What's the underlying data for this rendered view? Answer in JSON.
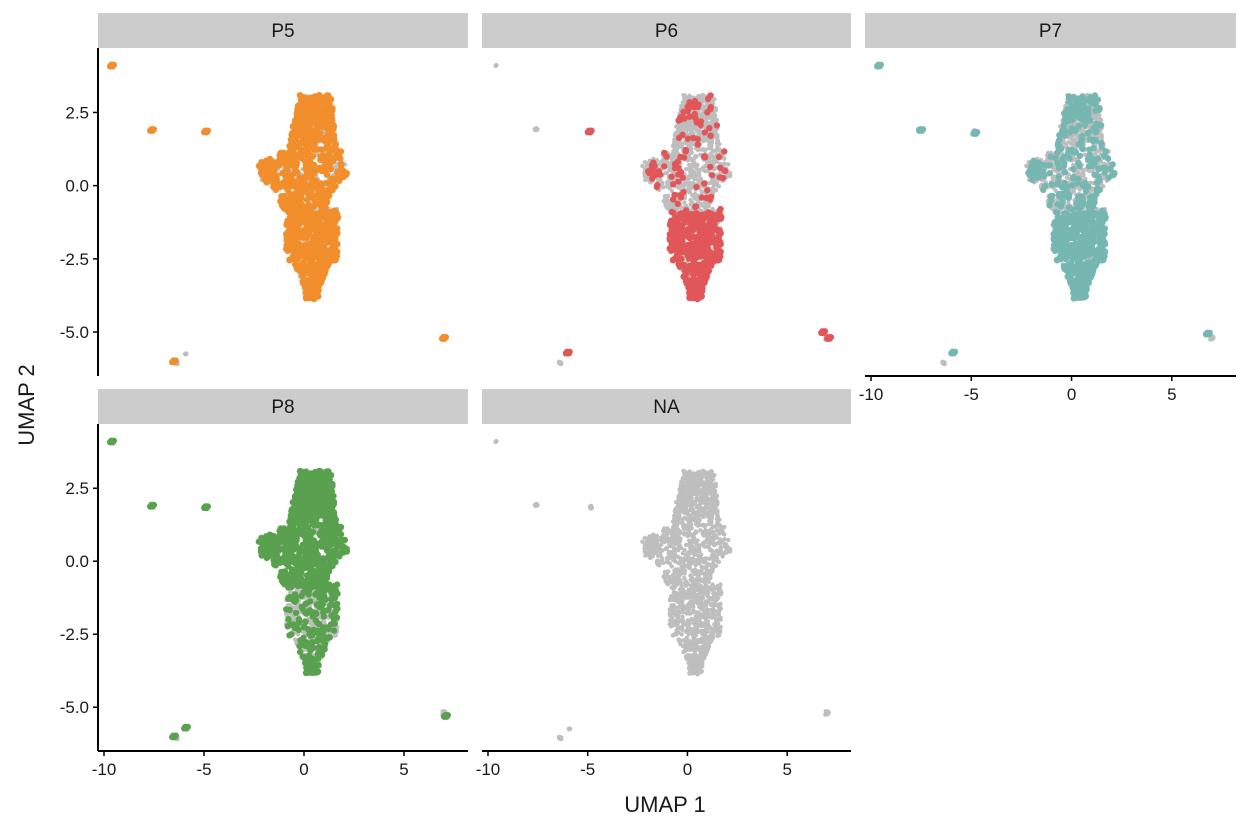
{
  "chart_data": {
    "type": "scatter",
    "xlabel": "UMAP 1",
    "ylabel": "UMAP 2",
    "xlim": [
      -10.3,
      8.2
    ],
    "ylim": [
      -6.5,
      4.7
    ],
    "x_ticks": [
      -10,
      -5,
      0,
      5
    ],
    "x_tick_labels": [
      "-10",
      "-5",
      "0",
      "5"
    ],
    "y_ticks": [
      2.5,
      0.0,
      -2.5,
      -5.0
    ],
    "y_tick_labels": [
      "2.5",
      "0.0",
      "-2.5",
      "-5.0"
    ],
    "grid": false,
    "legend": "none",
    "background_color": "#bebebe",
    "strip_color": "#cccccc",
    "panels": [
      {
        "label": "P5",
        "color": "#f28e2b",
        "highlight": {
          "main_top": 0.65,
          "main_bottom": 0.85,
          "outliers": [
            [
              -9.6,
              4.1
            ],
            [
              -7.6,
              1.9
            ],
            [
              -4.9,
              1.85
            ],
            [
              -6.5,
              -6.0
            ],
            [
              7.0,
              -5.2
            ]
          ]
        }
      },
      {
        "label": "P6",
        "color": "#e15759",
        "highlight": {
          "main_top": 0.1,
          "main_bottom": 0.75,
          "outliers": [
            [
              -4.9,
              1.85
            ],
            [
              -6.0,
              -5.7
            ],
            [
              6.8,
              -5.0
            ],
            [
              7.1,
              -5.2
            ]
          ]
        }
      },
      {
        "label": "P7",
        "color": "#76b7b2",
        "highlight": {
          "main_top": 0.25,
          "main_bottom": 0.8,
          "outliers": [
            [
              -9.6,
              4.1
            ],
            [
              -7.5,
              1.9
            ],
            [
              -4.8,
              1.8
            ],
            [
              -5.9,
              -5.7
            ],
            [
              6.8,
              -5.05
            ]
          ]
        }
      },
      {
        "label": "P8",
        "color": "#59a14f",
        "highlight": {
          "main_top": 0.95,
          "main_bottom": 0.3,
          "outliers": [
            [
              -9.6,
              4.1
            ],
            [
              -7.6,
              1.9
            ],
            [
              -4.9,
              1.85
            ],
            [
              -6.5,
              -6.0
            ],
            [
              -5.9,
              -5.7
            ],
            [
              7.1,
              -5.3
            ]
          ]
        }
      },
      {
        "label": "NA",
        "color": "#bebebe",
        "highlight": {
          "main_top": 0.0,
          "main_bottom": 0.0,
          "outliers": []
        }
      }
    ]
  }
}
